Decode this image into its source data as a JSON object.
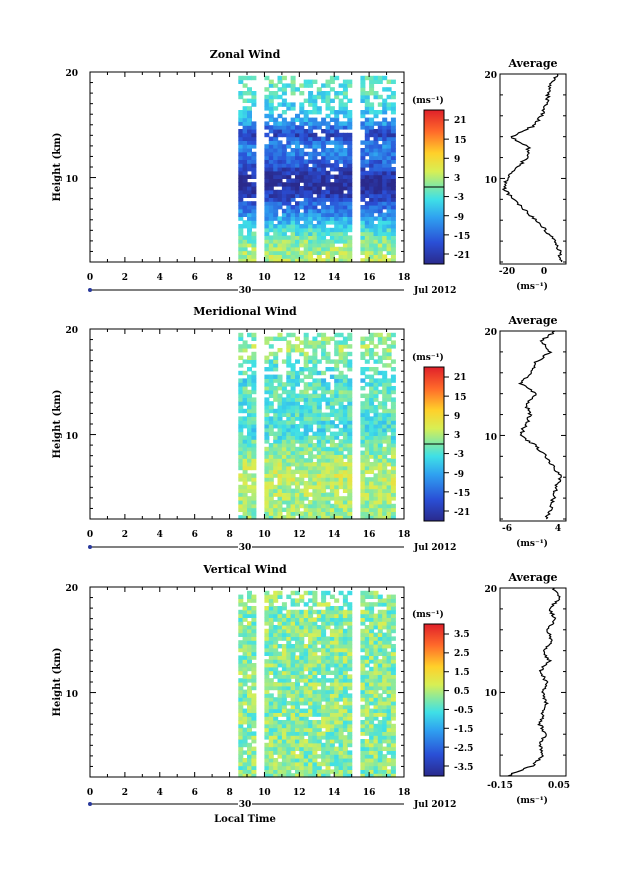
{
  "chart_data": [
    {
      "type": "heatmap",
      "title": "Zonal Wind",
      "ylabel": "Height (km)",
      "xlim": [
        0,
        18
      ],
      "ylim": [
        2,
        20
      ],
      "xticks": [
        "0",
        "2",
        "4",
        "6",
        "8",
        "10",
        "12",
        "14",
        "16",
        "18"
      ],
      "yticks": [
        "10",
        "20"
      ],
      "date_label": "30",
      "month_label": "Jul 2012",
      "colorbar": {
        "unit": "(ms⁻¹)",
        "ticks": [
          "21",
          "15",
          "9",
          "3",
          "-3",
          "-9",
          "-15",
          "-21"
        ],
        "range": [
          -24,
          24
        ]
      },
      "data_time_range": [
        8.5,
        17.5
      ],
      "gaps": [
        [
          9.6,
          10.0
        ],
        [
          15.2,
          15.5
        ]
      ],
      "profile": {
        "title": "Average",
        "xlabel": "(ms⁻¹)",
        "xlim": [
          -25,
          5
        ],
        "xticks": [
          "-20",
          "0"
        ],
        "yticks": [
          "10",
          "20"
        ],
        "height": [
          2,
          3,
          4,
          5,
          6,
          7,
          8,
          9,
          10,
          11,
          12,
          13,
          14,
          15,
          16,
          17,
          18,
          19,
          20
        ],
        "value": [
          3,
          2,
          0,
          -4,
          -9,
          -14,
          -19,
          -23,
          -22,
          -17,
          -13,
          -12,
          -20,
          -10,
          -6,
          -4,
          -3,
          -2,
          1
        ]
      }
    },
    {
      "type": "heatmap",
      "title": "Meridional Wind",
      "ylabel": "Height (km)",
      "xlim": [
        0,
        18
      ],
      "ylim": [
        2,
        20
      ],
      "xticks": [
        "0",
        "2",
        "4",
        "6",
        "8",
        "10",
        "12",
        "14",
        "16",
        "18"
      ],
      "yticks": [
        "10",
        "20"
      ],
      "date_label": "30",
      "month_label": "Jul 2012",
      "colorbar": {
        "unit": "(ms⁻¹)",
        "ticks": [
          "21",
          "15",
          "9",
          "3",
          "-3",
          "-9",
          "-15",
          "-21"
        ],
        "range": [
          -24,
          24
        ]
      },
      "data_time_range": [
        8.5,
        17.5
      ],
      "gaps": [
        [
          9.6,
          10.0
        ],
        [
          15.2,
          15.5
        ]
      ],
      "profile": {
        "title": "Average",
        "xlabel": "(ms⁻¹)",
        "xlim": [
          -8,
          5
        ],
        "xticks": [
          "-6",
          "4"
        ],
        "yticks": [
          "10",
          "20"
        ],
        "height": [
          2,
          3,
          4,
          5,
          6,
          7,
          8,
          9,
          10,
          11,
          12,
          13,
          14,
          15,
          16,
          17,
          18,
          19,
          20
        ],
        "value": [
          1,
          2,
          2.5,
          3,
          4,
          2.5,
          1,
          -1,
          -4,
          -3,
          -2,
          -3,
          -1,
          -4,
          -2,
          -1,
          2,
          0,
          3
        ]
      }
    },
    {
      "type": "heatmap",
      "title": "Vertical Wind",
      "ylabel": "Height (km)",
      "xlabel": "Local Time",
      "xlim": [
        0,
        18
      ],
      "ylim": [
        2,
        20
      ],
      "xticks": [
        "0",
        "2",
        "4",
        "6",
        "8",
        "10",
        "12",
        "14",
        "16",
        "18"
      ],
      "yticks": [
        "10",
        "20"
      ],
      "date_label": "30",
      "month_label": "Jul 2012",
      "colorbar": {
        "unit": "(ms⁻¹)",
        "ticks": [
          "3.5",
          "2.5",
          "1.5",
          "0.5",
          "-0.5",
          "-1.5",
          "-2.5",
          "-3.5"
        ],
        "range": [
          -4,
          4
        ]
      },
      "data_time_range": [
        8.5,
        17.5
      ],
      "gaps": [
        [
          9.6,
          10.0
        ],
        [
          15.2,
          15.5
        ]
      ],
      "profile": {
        "title": "Average",
        "xlabel": "(ms⁻¹)",
        "xlim": [
          -0.15,
          0.05
        ],
        "xticks": [
          "-0.15",
          "0.05"
        ],
        "yticks": [
          "10",
          "20"
        ],
        "height": [
          2,
          3,
          4,
          5,
          6,
          7,
          8,
          9,
          10,
          11,
          12,
          13,
          14,
          15,
          16,
          17,
          18,
          19,
          20
        ],
        "value": [
          -0.13,
          -0.05,
          -0.02,
          -0.03,
          -0.01,
          -0.03,
          -0.02,
          -0.01,
          -0.02,
          -0.01,
          -0.03,
          0.0,
          -0.02,
          0.01,
          -0.01,
          0.02,
          0.0,
          0.03,
          0.01
        ]
      }
    }
  ]
}
